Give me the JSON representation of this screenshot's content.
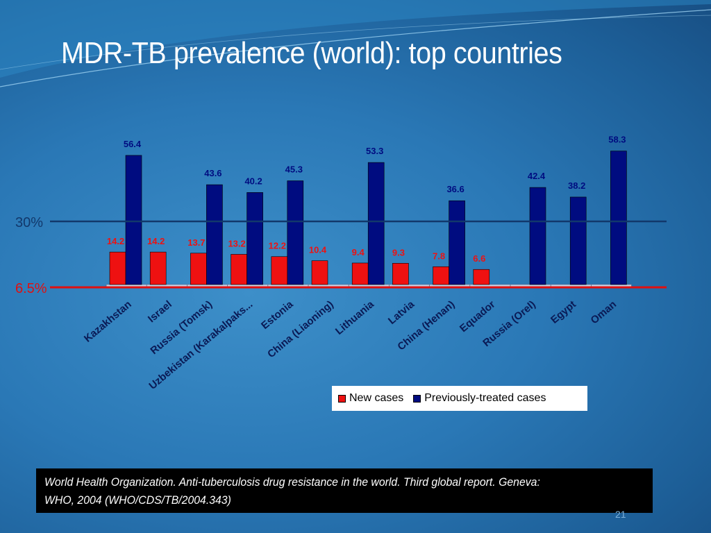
{
  "slide": {
    "title": "MDR-TB prevalence (world): top countries",
    "source_line1": "World Health Organization.  Anti-tuberculosis drug resistance in the world. Third global report. Geneva:",
    "source_line2": "WHO, 2004 (WHO/CDS/TB/2004.343)",
    "page_number": "21"
  },
  "colors": {
    "new_cases": "#ee1111",
    "previously_treated": "#000c80",
    "new_label": "#ee1111",
    "prev_label": "#000c80",
    "ref_30": "#12386b",
    "ref_6_5": "#e01010"
  },
  "chart_data": {
    "type": "bar",
    "categories": [
      "Kazakhstan",
      "Israel",
      "Russia (Tomsk)",
      "Uzbekistan (Karakalpaks...",
      "Estonia",
      "China (Liaoning)",
      "Lithuania",
      "Latvia",
      "China (Henan)",
      "Equador",
      "Russia (Orel)",
      "Egypt",
      "Oman"
    ],
    "series": [
      {
        "name": "New cases",
        "values": [
          14.2,
          14.2,
          13.7,
          13.2,
          12.2,
          10.4,
          9.4,
          9.3,
          7.8,
          6.6,
          null,
          null,
          null
        ]
      },
      {
        "name": "Previously-treated cases",
        "values": [
          56.4,
          null,
          43.6,
          40.2,
          45.3,
          null,
          53.3,
          null,
          36.6,
          null,
          42.4,
          38.2,
          58.3
        ]
      }
    ],
    "ylim": [
      0,
      60
    ],
    "reference_lines": [
      {
        "label": "30%",
        "value": 30
      },
      {
        "label": "6.5%",
        "value": 6.5
      }
    ],
    "legend": [
      "New cases",
      "Previously-treated cases"
    ],
    "legend_position": "bottom-right",
    "grid": false
  }
}
